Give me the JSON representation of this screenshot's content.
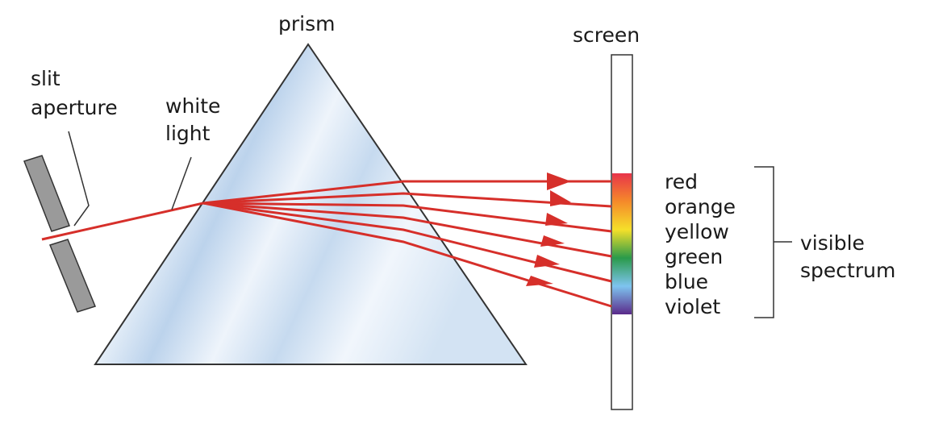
{
  "labels": {
    "prism": "prism",
    "screen": "screen",
    "slit_aperture_line1": "slit",
    "slit_aperture_line2": "aperture",
    "white_light_line1": "white",
    "white_light_line2": "light",
    "visible_spectrum_line1": "visible",
    "visible_spectrum_line2": "spectrum"
  },
  "spectrum": [
    {
      "label": "red",
      "color": "#e8344a"
    },
    {
      "label": "orange",
      "color": "#f58a2a"
    },
    {
      "label": "yellow",
      "color": "#f5e02a"
    },
    {
      "label": "green",
      "color": "#2a9a4a"
    },
    {
      "label": "blue",
      "color": "#7ec4ef"
    },
    {
      "label": "violet",
      "color": "#5a2a8a"
    }
  ],
  "colors": {
    "ray": "#d62f2a",
    "slit_plate": "#9a9a9a",
    "outline": "#333333",
    "prism_fill_light": "#e6f0fa",
    "prism_fill_band": "#c2d8ef"
  }
}
